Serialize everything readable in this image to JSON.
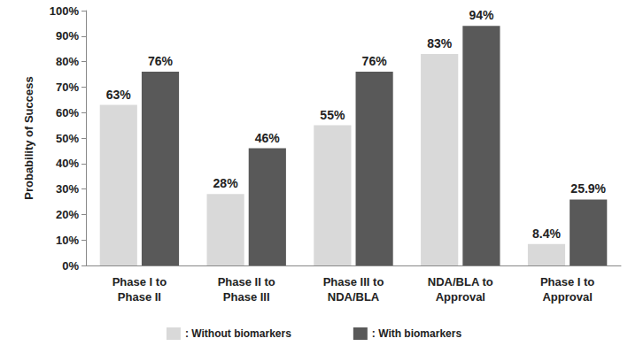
{
  "chart_data": {
    "type": "bar",
    "y_label": "Probability of Success",
    "categories": [
      "Phase I to\nPhase II",
      "Phase II to\nPhase III",
      "Phase III to\nNDA/BLA",
      "NDA/BLA to\nApproval",
      "Phase I to\nApproval"
    ],
    "series": [
      {
        "name": ": Without biomarkers",
        "color": "#d9d9d9",
        "values": [
          63,
          28,
          55,
          83,
          8.4
        ],
        "value_labels": [
          "63%",
          "28%",
          "55%",
          "83%",
          "8.4%"
        ]
      },
      {
        "name": ": With biomarkers",
        "color": "#595959",
        "values": [
          76,
          46,
          76,
          94,
          25.9
        ],
        "value_labels": [
          "76%",
          "46%",
          "76%",
          "94%",
          "25.9%"
        ]
      }
    ],
    "ylim": [
      0,
      100
    ],
    "yticks": [
      {
        "value": 0,
        "label": "0%"
      },
      {
        "value": 10,
        "label": "10%"
      },
      {
        "value": 20,
        "label": "20%"
      },
      {
        "value": 30,
        "label": "30%"
      },
      {
        "value": 40,
        "label": "40%"
      },
      {
        "value": 50,
        "label": "50%"
      },
      {
        "value": 60,
        "label": "60%"
      },
      {
        "value": 70,
        "label": "70%"
      },
      {
        "value": 80,
        "label": "80%"
      },
      {
        "value": 90,
        "label": "90%"
      },
      {
        "value": 100,
        "label": "100%"
      }
    ],
    "grid": false,
    "legend": "bottom",
    "data_labels": true
  }
}
